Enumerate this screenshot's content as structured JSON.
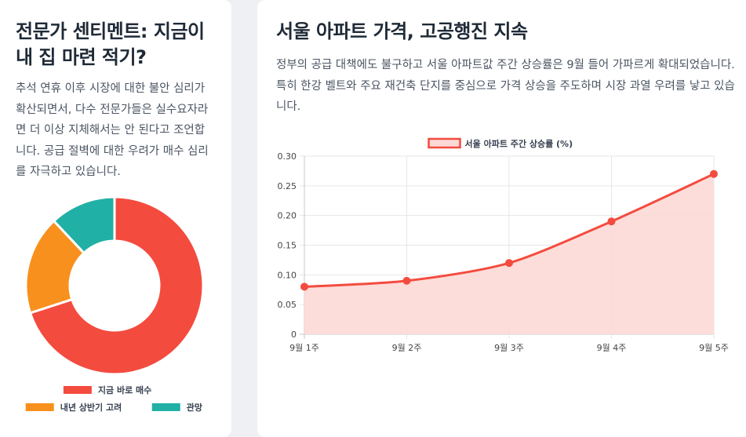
{
  "left_card": {
    "title": "전문가 센티멘트: 지금이 내 집 마련 적기?",
    "text": "추석 연휴 이후 시장에 대한 불안 심리가 확산되면서, 다수 전문가들은 실수요자라면 더 이상 지체해서는 안 된다고 조언합니다. 공급 절벽에 대한 우려가 매수 심리를 자극하고 있습니다."
  },
  "right_card": {
    "title": "서울 아파트 가격, 고공행진 지속",
    "text": "정부의 공급 대책에도 불구하고 서울 아파트값 주간 상승률은 9월 들어 가파르게 확대되었습니다. 특히 한강 벨트와 주요 재건축 단지를 중심으로 가격 상승을 주도하며 시장 과열 우려를 낳고 있습니다."
  },
  "chart_data": [
    {
      "type": "pie",
      "variant": "doughnut",
      "title": "",
      "categories": [
        "지금 바로 매수",
        "내년 상반기 고려",
        "관망"
      ],
      "values": [
        70,
        18,
        12
      ],
      "colors": [
        "#f44b3f",
        "#f8901d",
        "#21b0a5"
      ],
      "legend_position": "bottom"
    },
    {
      "type": "area",
      "title": "",
      "categories": [
        "9월 1주",
        "9월 2주",
        "9월 3주",
        "9월 4주",
        "9월 5주"
      ],
      "series": [
        {
          "name": "서울 아파트 주간 상승률 (%)",
          "values": [
            0.08,
            0.09,
            0.12,
            0.19,
            0.27
          ]
        }
      ],
      "ylim": [
        0,
        0.3
      ],
      "yticks": [
        0,
        0.05,
        0.1,
        0.15,
        0.2,
        0.25,
        0.3
      ],
      "ytick_labels": [
        "0",
        "0.05",
        "0.10",
        "0.15",
        "0.20",
        "0.25",
        "0.30"
      ],
      "grid": true,
      "legend_position": "top",
      "line_color": "#f44b3f",
      "fill_color": "#fdd9d6"
    }
  ]
}
